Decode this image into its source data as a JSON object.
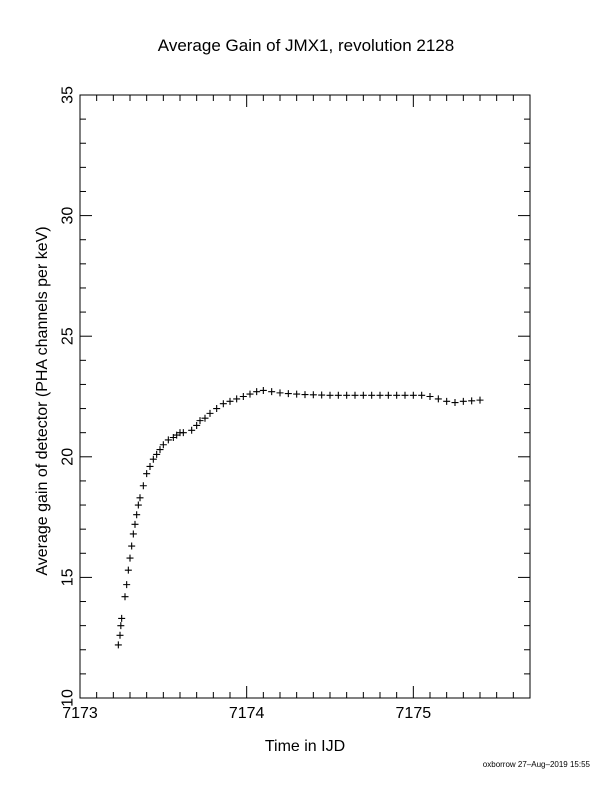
{
  "chart_data": {
    "type": "scatter",
    "title": "Average Gain of JMX1, revolution 2128",
    "xlabel": "Time in IJD",
    "ylabel": "Average gain of detector (PHA channels per keV)",
    "xlim": [
      7173,
      7175.7
    ],
    "ylim": [
      10,
      35
    ],
    "xticks": [
      7173,
      7174,
      7175
    ],
    "yticks": [
      10,
      15,
      20,
      25,
      30,
      35
    ],
    "marker": "+",
    "color": "#000000",
    "grid": false,
    "series": [
      {
        "x": [
          7173.23,
          7173.24,
          7173.245,
          7173.25,
          7173.27,
          7173.28,
          7173.29,
          7173.3,
          7173.31,
          7173.32,
          7173.33,
          7173.34,
          7173.35,
          7173.36,
          7173.38,
          7173.4,
          7173.42,
          7173.44,
          7173.46,
          7173.48,
          7173.5,
          7173.53,
          7173.56,
          7173.58,
          7173.6,
          7173.62,
          7173.67,
          7173.7,
          7173.72,
          7173.75,
          7173.78,
          7173.82,
          7173.86,
          7173.9,
          7173.94,
          7173.98,
          7174.02,
          7174.06,
          7174.1,
          7174.15,
          7174.2,
          7174.25,
          7174.3,
          7174.35,
          7174.4,
          7174.45,
          7174.5,
          7174.55,
          7174.6,
          7174.65,
          7174.7,
          7174.75,
          7174.8,
          7174.85,
          7174.9,
          7174.95,
          7175.0,
          7175.05,
          7175.1,
          7175.15,
          7175.2,
          7175.25,
          7175.3,
          7175.35,
          7175.4
        ],
        "y": [
          12.2,
          12.6,
          13.0,
          13.3,
          14.2,
          14.7,
          15.3,
          15.8,
          16.3,
          16.8,
          17.2,
          17.6,
          18.0,
          18.3,
          18.8,
          19.3,
          19.6,
          19.9,
          20.1,
          20.3,
          20.5,
          20.7,
          20.8,
          20.9,
          21.0,
          21.0,
          21.1,
          21.3,
          21.5,
          21.6,
          21.8,
          22.0,
          22.2,
          22.3,
          22.4,
          22.5,
          22.6,
          22.7,
          22.75,
          22.7,
          22.65,
          22.62,
          22.6,
          22.58,
          22.57,
          22.56,
          22.55,
          22.55,
          22.55,
          22.55,
          22.55,
          22.55,
          22.55,
          22.55,
          22.55,
          22.55,
          22.55,
          22.55,
          22.5,
          22.4,
          22.3,
          22.25,
          22.3,
          22.32,
          22.35
        ]
      }
    ]
  },
  "footer": {
    "credit": "oxborrow 27–Aug–2019 15:55"
  }
}
